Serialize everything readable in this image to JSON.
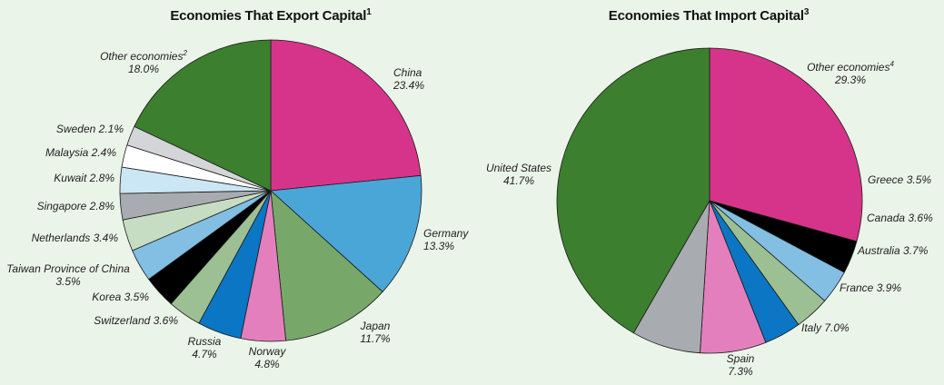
{
  "chart_data": [
    {
      "type": "pie",
      "title": "Economies That Export Capital",
      "title_note": "1",
      "slices": [
        {
          "label": "China",
          "value": 23.4,
          "display": "23.4%",
          "color": "#d6348a"
        },
        {
          "label": "Germany",
          "value": 13.3,
          "display": "13.3%",
          "color": "#4ba6d8"
        },
        {
          "label": "Japan",
          "value": 11.7,
          "display": "11.7%",
          "color": "#77a86a"
        },
        {
          "label": "Norway",
          "value": 4.8,
          "display": "4.8%",
          "color": "#e37fbd"
        },
        {
          "label": "Russia",
          "value": 4.7,
          "display": "4.7%",
          "color": "#0a76c4"
        },
        {
          "label": "Switzerland",
          "value": 3.6,
          "display": "3.6%",
          "color": "#9cc094"
        },
        {
          "label": "Korea",
          "value": 3.5,
          "display": "3.5%",
          "color": "#000000"
        },
        {
          "label": "Taiwan Province of China",
          "value": 3.5,
          "display": "3.5%",
          "color": "#82bfe3"
        },
        {
          "label": "Netherlands",
          "value": 3.4,
          "display": "3.4%",
          "color": "#c6ddc4"
        },
        {
          "label": "Singapore",
          "value": 2.8,
          "display": "2.8%",
          "color": "#a8abaf"
        },
        {
          "label": "Kuwait",
          "value": 2.8,
          "display": "2.8%",
          "color": "#cbe6f4"
        },
        {
          "label": "Malaysia",
          "value": 2.4,
          "display": "2.4%",
          "color": "#ffffff"
        },
        {
          "label": "Sweden",
          "value": 2.1,
          "display": "2.1%",
          "color": "#d3d5d8"
        },
        {
          "label": "Other economies",
          "value": 18.0,
          "display": "18.0%",
          "color": "#3c7f2f",
          "note": "2"
        }
      ]
    },
    {
      "type": "pie",
      "title": "Economies That Import Capital",
      "title_note": "3",
      "slices": [
        {
          "label": "Other economies",
          "value": 29.3,
          "display": "29.3%",
          "color": "#d6348a",
          "note": "4"
        },
        {
          "label": "Greece",
          "value": 3.5,
          "display": "3.5%",
          "color": "#000000"
        },
        {
          "label": "Canada",
          "value": 3.6,
          "display": "3.6%",
          "color": "#82bfe3"
        },
        {
          "label": "Australia",
          "value": 3.7,
          "display": "3.7%",
          "color": "#9cc094"
        },
        {
          "label": "France",
          "value": 3.9,
          "display": "3.9%",
          "color": "#0a76c4"
        },
        {
          "label": "Italy",
          "value": 7.0,
          "display": "7.0%",
          "color": "#e37fbd"
        },
        {
          "label": "Spain",
          "value": 7.3,
          "display": "7.3%",
          "color": "#a8abaf"
        },
        {
          "label": "United States",
          "value": 41.7,
          "display": "41.7%",
          "color": "#3c7f2f"
        }
      ]
    }
  ]
}
